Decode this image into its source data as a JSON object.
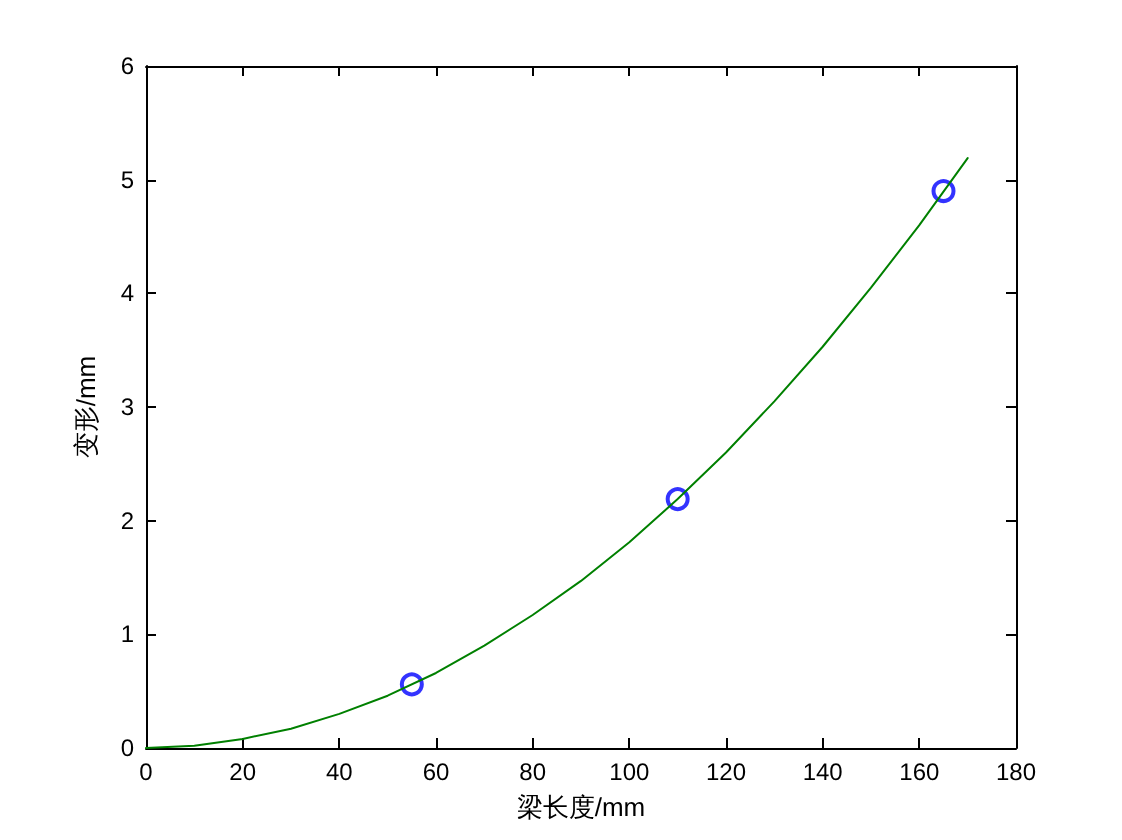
{
  "chart_data": {
    "type": "line",
    "xlabel": "梁长度/mm",
    "ylabel": "变形/mm",
    "xlim": [
      0,
      180
    ],
    "xticks": [
      0,
      20,
      40,
      60,
      80,
      100,
      120,
      140,
      160,
      180
    ],
    "ylim": [
      0,
      6
    ],
    "yticks": [
      0,
      1,
      2,
      3,
      4,
      5,
      6
    ],
    "grid": false,
    "series": [
      {
        "color": "#008000",
        "marker": "none",
        "line_style": "solid",
        "x": [
          0,
          10,
          20,
          30,
          40,
          50,
          60,
          70,
          80,
          90,
          100,
          110,
          120,
          130,
          140,
          150,
          160,
          170
        ],
        "values": [
          0,
          0.02,
          0.08,
          0.17,
          0.3,
          0.46,
          0.66,
          0.9,
          1.17,
          1.47,
          1.81,
          2.19,
          2.6,
          3.05,
          3.53,
          4.05,
          4.6,
          5.19
        ]
      },
      {
        "type": "scatter",
        "color": "#0000ff",
        "marker": "circle",
        "x": [
          55,
          110,
          165
        ],
        "values": [
          0.56,
          2.19,
          4.9
        ]
      }
    ]
  }
}
